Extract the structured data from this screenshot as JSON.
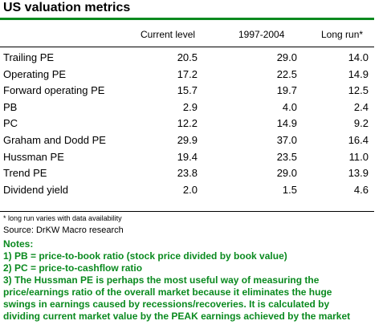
{
  "title": "US valuation metrics",
  "headers": [
    "Current level",
    "1997-2004",
    "Long run*"
  ],
  "rows": [
    {
      "label": "Trailing PE",
      "current": "20.5",
      "p1997_2004": "29.0",
      "long_run": "14.0"
    },
    {
      "label": "Operating PE",
      "current": "17.2",
      "p1997_2004": "22.5",
      "long_run": "14.9"
    },
    {
      "label": "Forward operating PE",
      "current": "15.7",
      "p1997_2004": "19.7",
      "long_run": "12.5"
    },
    {
      "label": "PB",
      "current": "2.9",
      "p1997_2004": "4.0",
      "long_run": "2.4"
    },
    {
      "label": "PC",
      "current": "12.2",
      "p1997_2004": "14.9",
      "long_run": "9.2"
    },
    {
      "label": "Graham and Dodd PE",
      "current": "29.9",
      "p1997_2004": "37.0",
      "long_run": "16.4"
    },
    {
      "label": "Hussman PE",
      "current": "19.4",
      "p1997_2004": "23.5",
      "long_run": "11.0"
    },
    {
      "label": "Trend PE",
      "current": "23.8",
      "p1997_2004": "29.0",
      "long_run": "13.9"
    },
    {
      "label": "Dividend yield",
      "current": "2.0",
      "p1997_2004": "1.5",
      "long_run": "4.6"
    }
  ],
  "footnote": "* long run varies with data availability",
  "source": "Source: DrKW Macro research",
  "notes": {
    "heading": "Notes:",
    "lines": [
      "1) PB = price-to-book ratio (stock price divided by book value)",
      "2) PC = price-to-cashflow ratio",
      "3) The Hussman PE is perhaps the most useful way of measuring the",
      "price/earnings ratio of the overall market because it eliminates the huge",
      "swings in earnings caused by recessions/recoveries. It is calculated by",
      "dividing current market value by the PEAK earnings achieved by the market"
    ]
  },
  "colors": {
    "accent_green": "#0a8a1f"
  }
}
